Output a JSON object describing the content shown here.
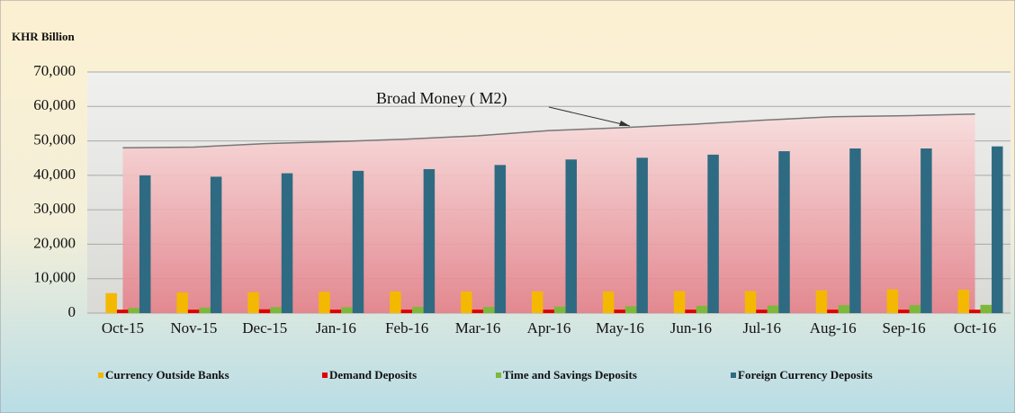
{
  "chart_data": {
    "type": "bar",
    "y_label": "KHR Billion",
    "annotation": "Broad Money ( M2)",
    "categories": [
      "Oct-15",
      "Nov-15",
      "Dec-15",
      "Jan-16",
      "Feb-16",
      "Mar-16",
      "Apr-16",
      "May-16",
      "Jun-16",
      "Jul-16",
      "Aug-16",
      "Sep-16",
      "Oct-16"
    ],
    "series": [
      {
        "name": "Currency Outside Banks",
        "color": "#f5b800",
        "values": [
          5800,
          6000,
          6100,
          6200,
          6300,
          6300,
          6300,
          6300,
          6400,
          6400,
          6600,
          6900,
          6800
        ]
      },
      {
        "name": "Demand Deposits",
        "color": "#e00000",
        "values": [
          1000,
          1000,
          1100,
          1000,
          1000,
          1000,
          1000,
          1000,
          1000,
          1000,
          1000,
          1000,
          1000
        ]
      },
      {
        "name": "Time and Savings Deposits",
        "color": "#7db83a",
        "values": [
          1500,
          1600,
          1700,
          1700,
          1800,
          1800,
          1900,
          2000,
          2100,
          2200,
          2300,
          2300,
          2400
        ]
      },
      {
        "name": "Foreign Currency Deposits",
        "color": "#2e6b82",
        "values": [
          40000,
          39600,
          40600,
          41300,
          41800,
          43000,
          44600,
          45100,
          46000,
          47000,
          47800,
          47800,
          48400
        ]
      }
    ],
    "area": {
      "color": "#f2a7ad",
      "values": [
        48000,
        48200,
        49200,
        49800,
        50500,
        51500,
        53000,
        53800,
        54800,
        56000,
        57000,
        57300,
        57800
      ]
    },
    "ylim": [
      0,
      70000
    ],
    "yticks": [
      0,
      {
        "value": 10000,
        "label": "10,000"
      },
      {
        "value": 20000,
        "label": "20,000"
      },
      {
        "value": 30000,
        "label": "30,000"
      },
      {
        "value": 40000,
        "label": "40,000"
      },
      {
        "value": 50000,
        "label": "50,000"
      },
      {
        "value": 60000,
        "label": "60,000"
      },
      {
        "value": 70000,
        "label": "70,000"
      }
    ],
    "grid": true,
    "legend": "bottom"
  }
}
